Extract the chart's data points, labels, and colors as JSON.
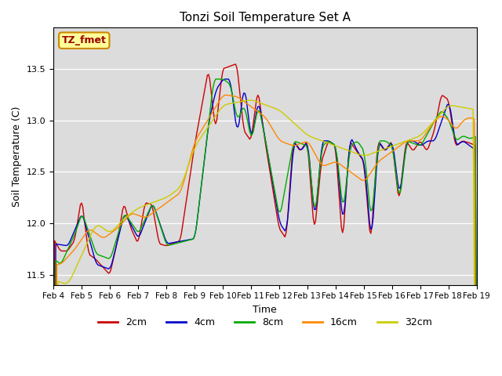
{
  "title": "Tonzi Soil Temperature Set A",
  "xlabel": "Time",
  "ylabel": "Soil Temperature (C)",
  "ylim": [
    11.4,
    13.9
  ],
  "xlim": [
    0,
    360
  ],
  "background_color": "#dcdcdc",
  "legend_label": "TZ_fmet",
  "legend_bg": "#ffff99",
  "legend_border": "#cc8800",
  "series_colors": {
    "2cm": "#cc0000",
    "4cm": "#0000cc",
    "8cm": "#00aa00",
    "16cm": "#ff8800",
    "32cm": "#cccc00"
  },
  "xtick_labels": [
    "Feb 4",
    "Feb 5",
    "Feb 6",
    "Feb 7",
    "Feb 8",
    "Feb 9",
    "Feb 10",
    "Feb 11",
    "Feb 12",
    "Feb 13",
    "Feb 14",
    "Feb 15",
    "Feb 16",
    "Feb 17",
    "Feb 18",
    "Feb 19"
  ],
  "xtick_positions": [
    0,
    24,
    48,
    72,
    96,
    120,
    144,
    168,
    192,
    216,
    240,
    264,
    288,
    312,
    336,
    360
  ]
}
